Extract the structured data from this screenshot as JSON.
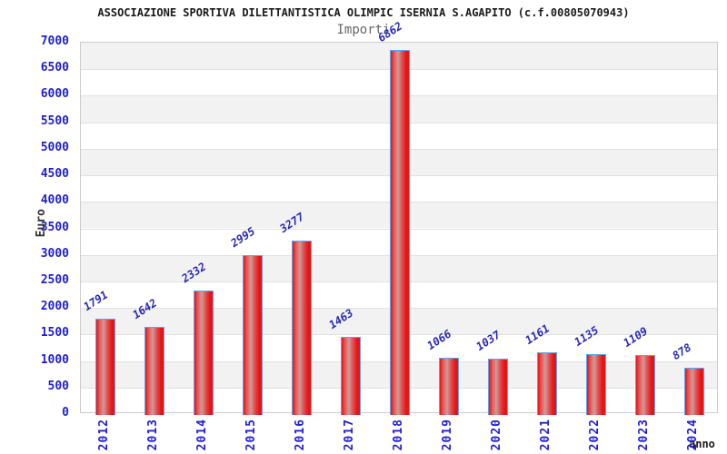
{
  "header": {
    "title": "ASSOCIAZIONE SPORTIVA DILETTANTISTICA OLIMPIC ISERNIA S.AGAPITO (c.f.00805070943)",
    "subtitle": "Importi"
  },
  "chart_data": {
    "type": "bar",
    "title": "ASSOCIAZIONE SPORTIVA DILETTANTISTICA OLIMPIC ISERNIA S.AGAPITO (c.f.00805070943)",
    "subtitle": "Importi",
    "categories": [
      "2012",
      "2013",
      "2014",
      "2015",
      "2016",
      "2017",
      "2018",
      "2019",
      "2020",
      "2021",
      "2022",
      "2023",
      "2024"
    ],
    "values": [
      1791,
      1642,
      2332,
      2995,
      3277,
      1463,
      6862,
      1066,
      1037,
      1161,
      1135,
      1109,
      878
    ],
    "xlabel": "anno",
    "ylabel": "Euro",
    "ylim": [
      0,
      7000
    ],
    "ytick_step": 500,
    "grid": true,
    "banded_background": true,
    "legend": "none",
    "colors": {
      "bar_red": "#e81414",
      "bar_red_light": "#cf9a9a",
      "bar_border": "#5aa7f0",
      "tick_label_blue": "#1e1ed2",
      "value_label_blue": "#2828b4",
      "band_gray": "#f2f2f2",
      "grid_gray": "#e0e0e0",
      "title_color": "#1a1a1a",
      "subtitle_color": "#666666",
      "axis_title_color": "#333333"
    }
  }
}
